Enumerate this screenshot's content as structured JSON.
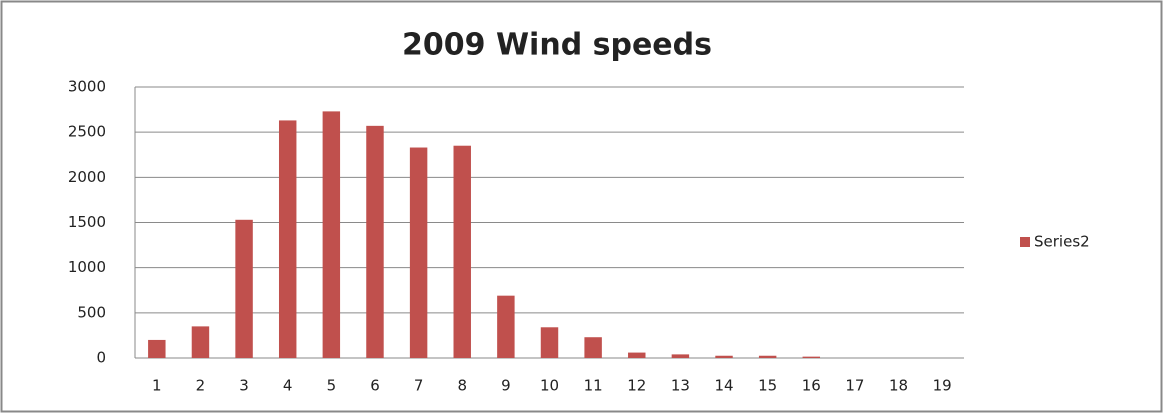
{
  "chart_data": {
    "type": "bar",
    "title": "2009 Wind speeds",
    "categories": [
      "1",
      "2",
      "3",
      "4",
      "5",
      "6",
      "7",
      "8",
      "9",
      "10",
      "11",
      "12",
      "13",
      "14",
      "15",
      "16",
      "17",
      "18",
      "19"
    ],
    "series": [
      {
        "name": "Series2",
        "color": "#c0504d",
        "values": [
          200,
          350,
          1530,
          2630,
          2730,
          2570,
          2330,
          2350,
          690,
          340,
          230,
          60,
          40,
          25,
          25,
          15,
          0,
          0,
          0
        ]
      }
    ],
    "ylim": [
      0,
      3000
    ],
    "yticks": [
      0,
      500,
      1000,
      1500,
      2000,
      2500,
      3000
    ],
    "grid": true,
    "legend": "right"
  }
}
